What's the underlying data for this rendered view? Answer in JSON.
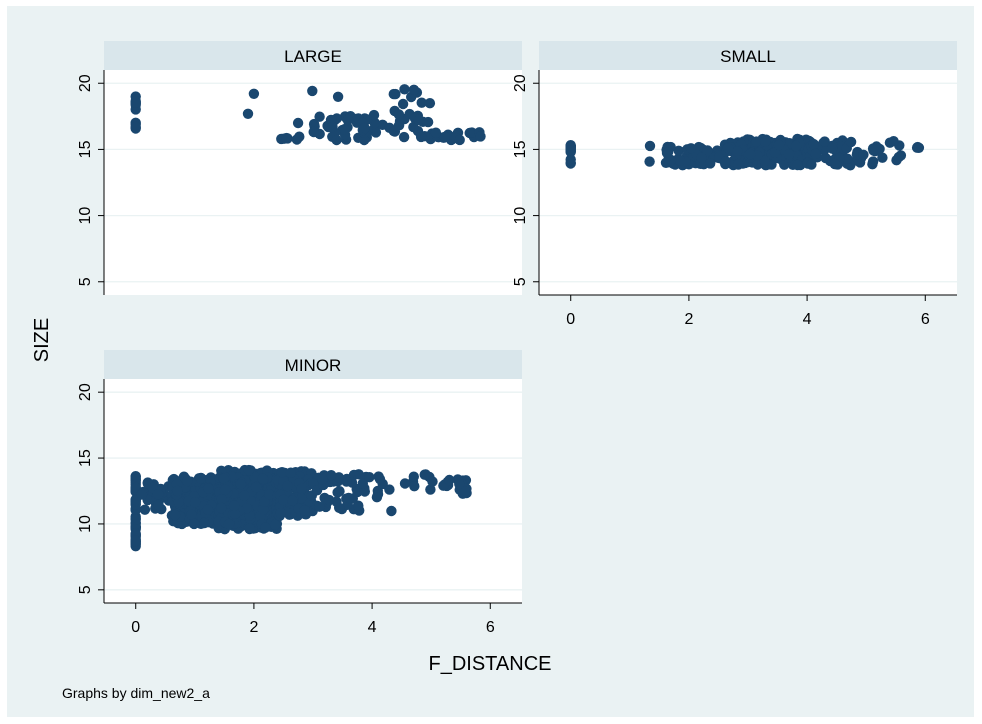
{
  "figure": {
    "xlabel": "F_DISTANCE",
    "ylabel": "SIZE",
    "note": "Graphs by dim_new2_a",
    "colors": {
      "outer_bg": "#EAF2F3",
      "plot_bg": "#FFFFFF",
      "strip_bg": "#D9E6EB",
      "marker": "#1A476F",
      "grid": "#EAF2F3"
    }
  },
  "chart_data": [
    {
      "type": "scatter",
      "title": "LARGE",
      "xlim": [
        -0.3,
        6.3
      ],
      "ylim": [
        4,
        21
      ],
      "yticks": [
        5,
        10,
        15,
        20
      ],
      "xticks": [],
      "clusters": [
        {
          "x": [
            0,
            0
          ],
          "y": [
            16,
            19
          ],
          "n": 10
        },
        {
          "x": [
            1.9,
            1.9
          ],
          "y": [
            17.6,
            17.8
          ],
          "n": 1
        },
        {
          "x": [
            2.0,
            2.0
          ],
          "y": [
            19.2,
            19.2
          ],
          "n": 1
        },
        {
          "x": [
            2.4,
            2.8
          ],
          "y": [
            15.7,
            16.0
          ],
          "n": 6
        },
        {
          "x": [
            2.7,
            2.75
          ],
          "y": [
            16.9,
            17.1
          ],
          "n": 1
        },
        {
          "x": [
            2.95,
            3.0
          ],
          "y": [
            19.4,
            19.5
          ],
          "n": 1
        },
        {
          "x": [
            3.0,
            4.3
          ],
          "y": [
            15.7,
            17.6
          ],
          "n": 45
        },
        {
          "x": [
            4.3,
            5.0
          ],
          "y": [
            15.9,
            19.6
          ],
          "n": 25
        },
        {
          "x": [
            3.4,
            3.5
          ],
          "y": [
            18.9,
            19.0
          ],
          "n": 1
        },
        {
          "x": [
            4.8,
            5.5
          ],
          "y": [
            15.7,
            16.3
          ],
          "n": 18
        },
        {
          "x": [
            5.6,
            5.9
          ],
          "y": [
            15.7,
            16.3
          ],
          "n": 5
        }
      ]
    },
    {
      "type": "scatter",
      "title": "SMALL",
      "xlim": [
        -0.3,
        6.3
      ],
      "ylim": [
        4,
        21
      ],
      "yticks": [
        5,
        10,
        15,
        20
      ],
      "xticks": [
        0,
        2,
        4,
        6
      ],
      "clusters": [
        {
          "x": [
            0,
            0
          ],
          "y": [
            13.8,
            15.4
          ],
          "n": 14
        },
        {
          "x": [
            1.3,
            1.35
          ],
          "y": [
            13.7,
            15.6
          ],
          "n": 2
        },
        {
          "x": [
            1.6,
            2.5
          ],
          "y": [
            13.8,
            15.2
          ],
          "n": 60
        },
        {
          "x": [
            2.5,
            4.0
          ],
          "y": [
            13.8,
            15.8
          ],
          "n": 160
        },
        {
          "x": [
            4.0,
            5.0
          ],
          "y": [
            13.8,
            15.8
          ],
          "n": 60
        },
        {
          "x": [
            5.0,
            5.6
          ],
          "y": [
            13.8,
            15.7
          ],
          "n": 14
        },
        {
          "x": [
            5.85,
            5.9
          ],
          "y": [
            14.8,
            15.3
          ],
          "n": 3
        }
      ]
    },
    {
      "type": "scatter",
      "title": "MINOR",
      "xlim": [
        -0.3,
        6.3
      ],
      "ylim": [
        4,
        21
      ],
      "yticks": [
        5,
        10,
        15,
        20
      ],
      "xticks": [
        0,
        2,
        4,
        6
      ],
      "clusters": [
        {
          "x": [
            0,
            0
          ],
          "y": [
            8.2,
            13.8
          ],
          "n": 45
        },
        {
          "x": [
            0.1,
            0.6
          ],
          "y": [
            11.0,
            13.2
          ],
          "n": 30
        },
        {
          "x": [
            0.6,
            1.4
          ],
          "y": [
            10.0,
            13.6
          ],
          "n": 200
        },
        {
          "x": [
            1.4,
            2.4
          ],
          "y": [
            9.6,
            14.1
          ],
          "n": 340
        },
        {
          "x": [
            2.4,
            3.0
          ],
          "y": [
            10.6,
            14.0
          ],
          "n": 110
        },
        {
          "x": [
            3.0,
            3.8
          ],
          "y": [
            11.0,
            13.8
          ],
          "n": 40
        },
        {
          "x": [
            3.8,
            4.4
          ],
          "y": [
            11.8,
            13.6
          ],
          "n": 12
        },
        {
          "x": [
            4.3,
            4.35
          ],
          "y": [
            10.9,
            11.0
          ],
          "n": 1
        },
        {
          "x": [
            4.5,
            5.3
          ],
          "y": [
            12.6,
            13.8
          ],
          "n": 14
        },
        {
          "x": [
            5.3,
            5.6
          ],
          "y": [
            11.7,
            13.6
          ],
          "n": 12
        }
      ]
    }
  ]
}
